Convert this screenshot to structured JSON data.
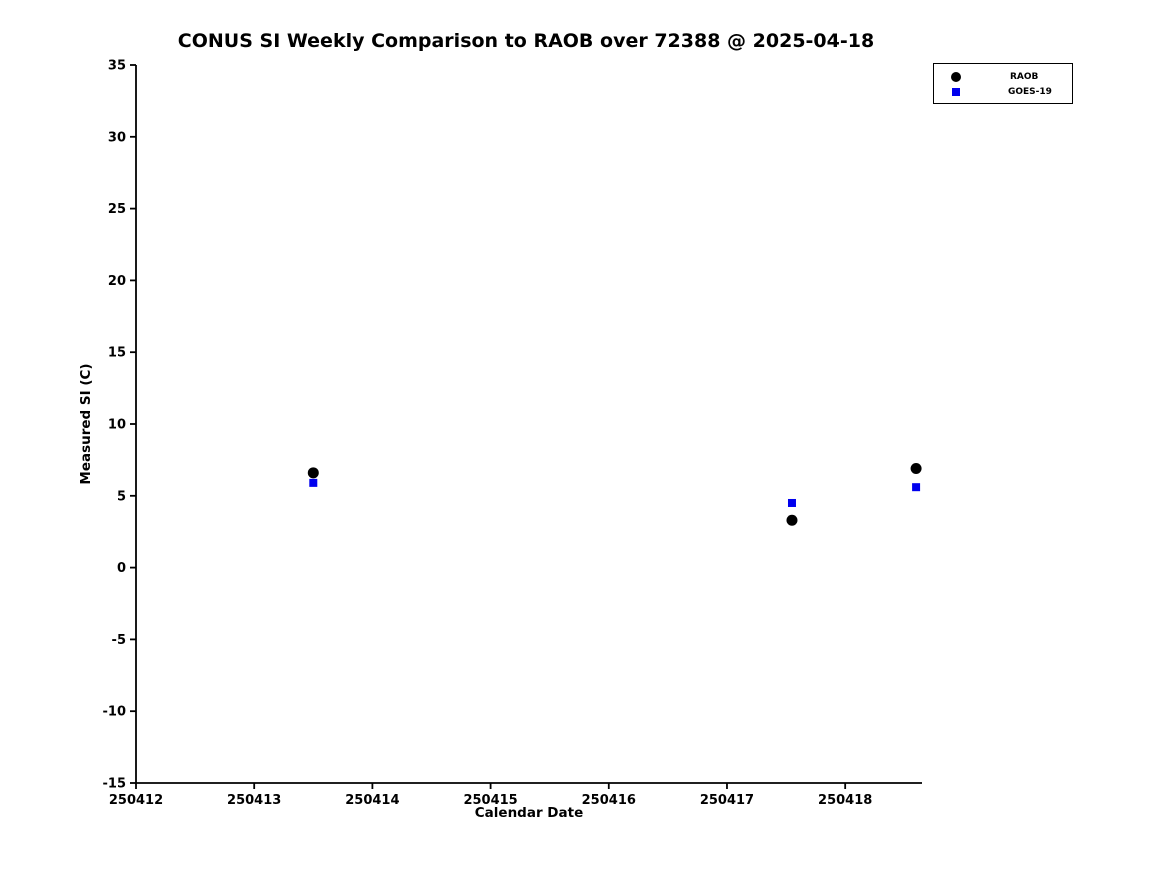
{
  "chart_data": {
    "type": "scatter",
    "title": "CONUS SI Weekly Comparison to RAOB over 72388 @ 2025-04-18",
    "xlabel": "Calendar Date",
    "ylabel": "Measured SI (C)",
    "xlim": [
      250412,
      250418.65
    ],
    "ylim": [
      -15,
      35
    ],
    "xticks": [
      250412,
      250413,
      250414,
      250415,
      250416,
      250417,
      250418
    ],
    "yticks": [
      -15,
      -10,
      -5,
      0,
      5,
      10,
      15,
      20,
      25,
      30,
      35
    ],
    "grid": false,
    "legend_position": "top-right-outside",
    "axis_color": "#000000",
    "series": [
      {
        "name": "RAOB",
        "marker": "circle",
        "color": "#000000",
        "points": [
          [
            250413.5,
            6.6
          ],
          [
            250417.55,
            3.3
          ],
          [
            250418.6,
            6.9
          ]
        ]
      },
      {
        "name": "GOES-19",
        "marker": "square",
        "color": "#0000ee",
        "points": [
          [
            250413.5,
            5.9
          ],
          [
            250417.55,
            4.5
          ],
          [
            250418.6,
            5.6
          ]
        ]
      }
    ]
  }
}
